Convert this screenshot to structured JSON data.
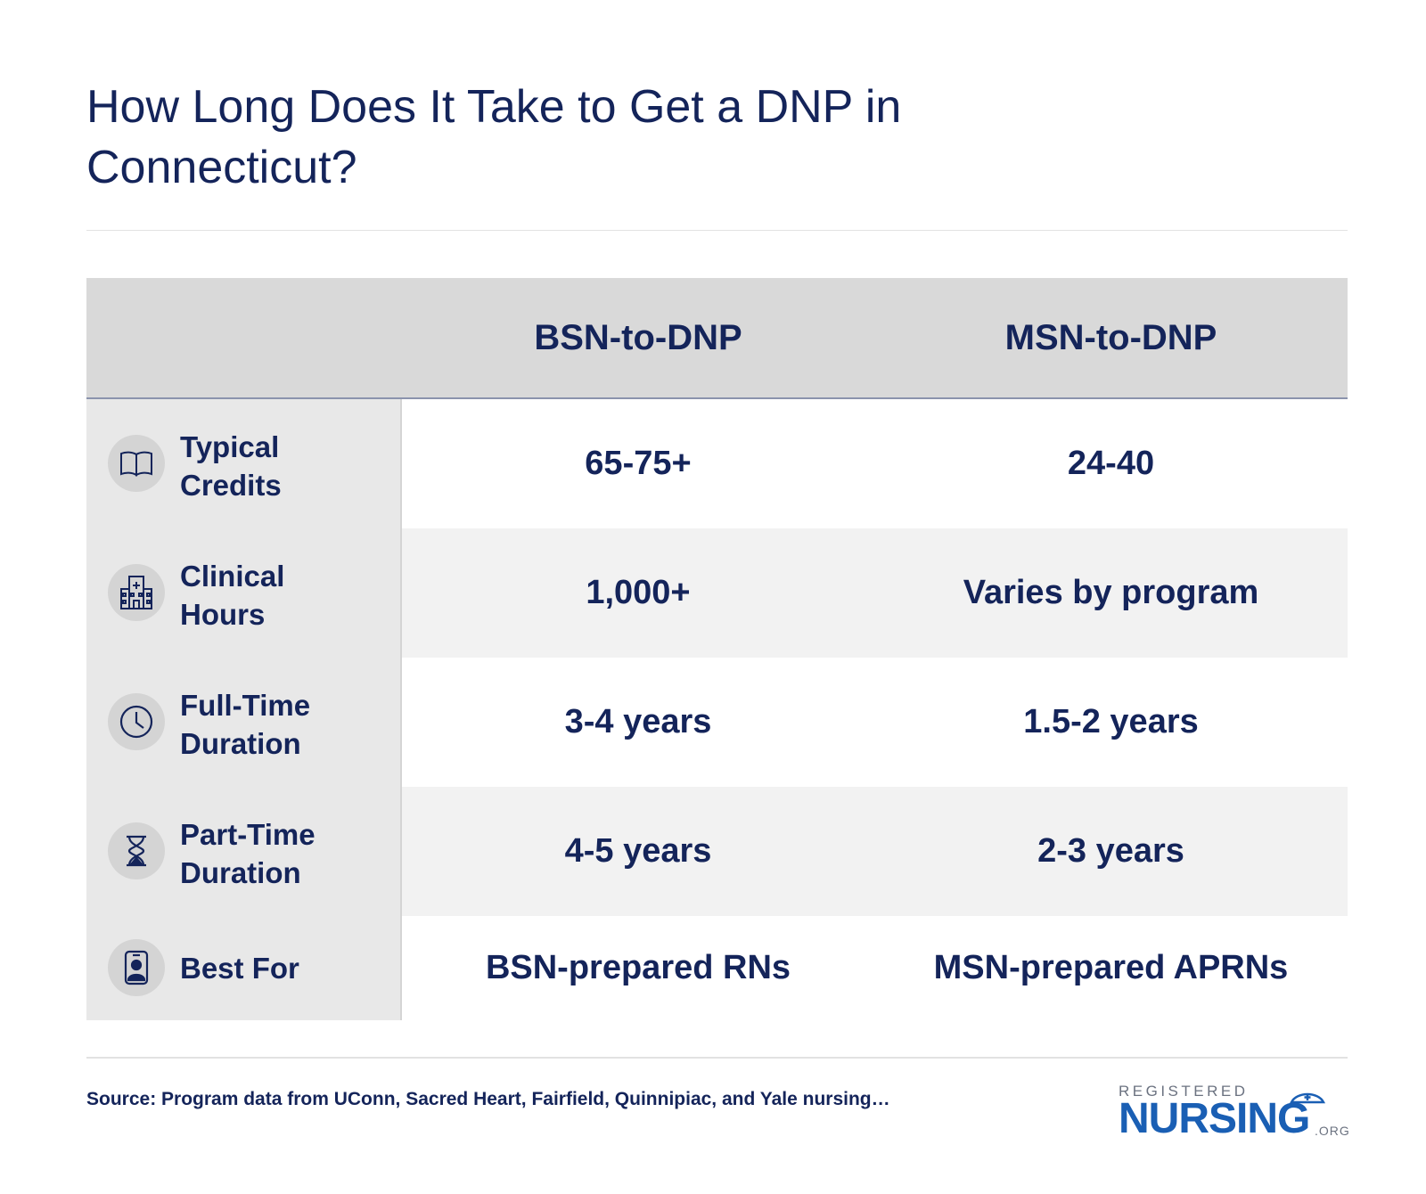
{
  "title": "How Long Does It Take to Get a DNP in Connecticut?",
  "columns": [
    "BSN-to-DNP",
    "MSN-to-DNP"
  ],
  "rows": [
    {
      "icon": "book-icon",
      "label_lines": [
        "Typical",
        "Credits"
      ],
      "bsn": "65-75+",
      "msn": "24-40"
    },
    {
      "icon": "hospital-icon",
      "label_lines": [
        "Clinical",
        "Hours"
      ],
      "bsn": "1,000+",
      "msn": "Varies by program"
    },
    {
      "icon": "clock-icon",
      "label_lines": [
        "Full-Time",
        "Duration"
      ],
      "bsn": "3-4 years",
      "msn": "1.5-2 years"
    },
    {
      "icon": "hourglass-icon",
      "label_lines": [
        "Part-Time",
        "Duration"
      ],
      "bsn": "4-5 years",
      "msn": "2-3 years"
    },
    {
      "icon": "id-badge-icon",
      "label_lines": [
        "Best For"
      ],
      "bsn": "BSN-prepared RNs",
      "msn": "MSN-prepared APRNs"
    }
  ],
  "source": "Source: Program data from UConn, Sacred Heart, Fairfield, Quinnipiac, and Yale nursing…",
  "logo": {
    "top": "REGISTERED",
    "main": "NURSING",
    "suffix": ".ORG"
  },
  "colors": {
    "navy": "#14245a",
    "header_bg": "#d9d9d9",
    "label_bg": "#e8e8e8",
    "shade_bg": "#f2f2f2",
    "logo_blue": "#1a5fb4"
  }
}
